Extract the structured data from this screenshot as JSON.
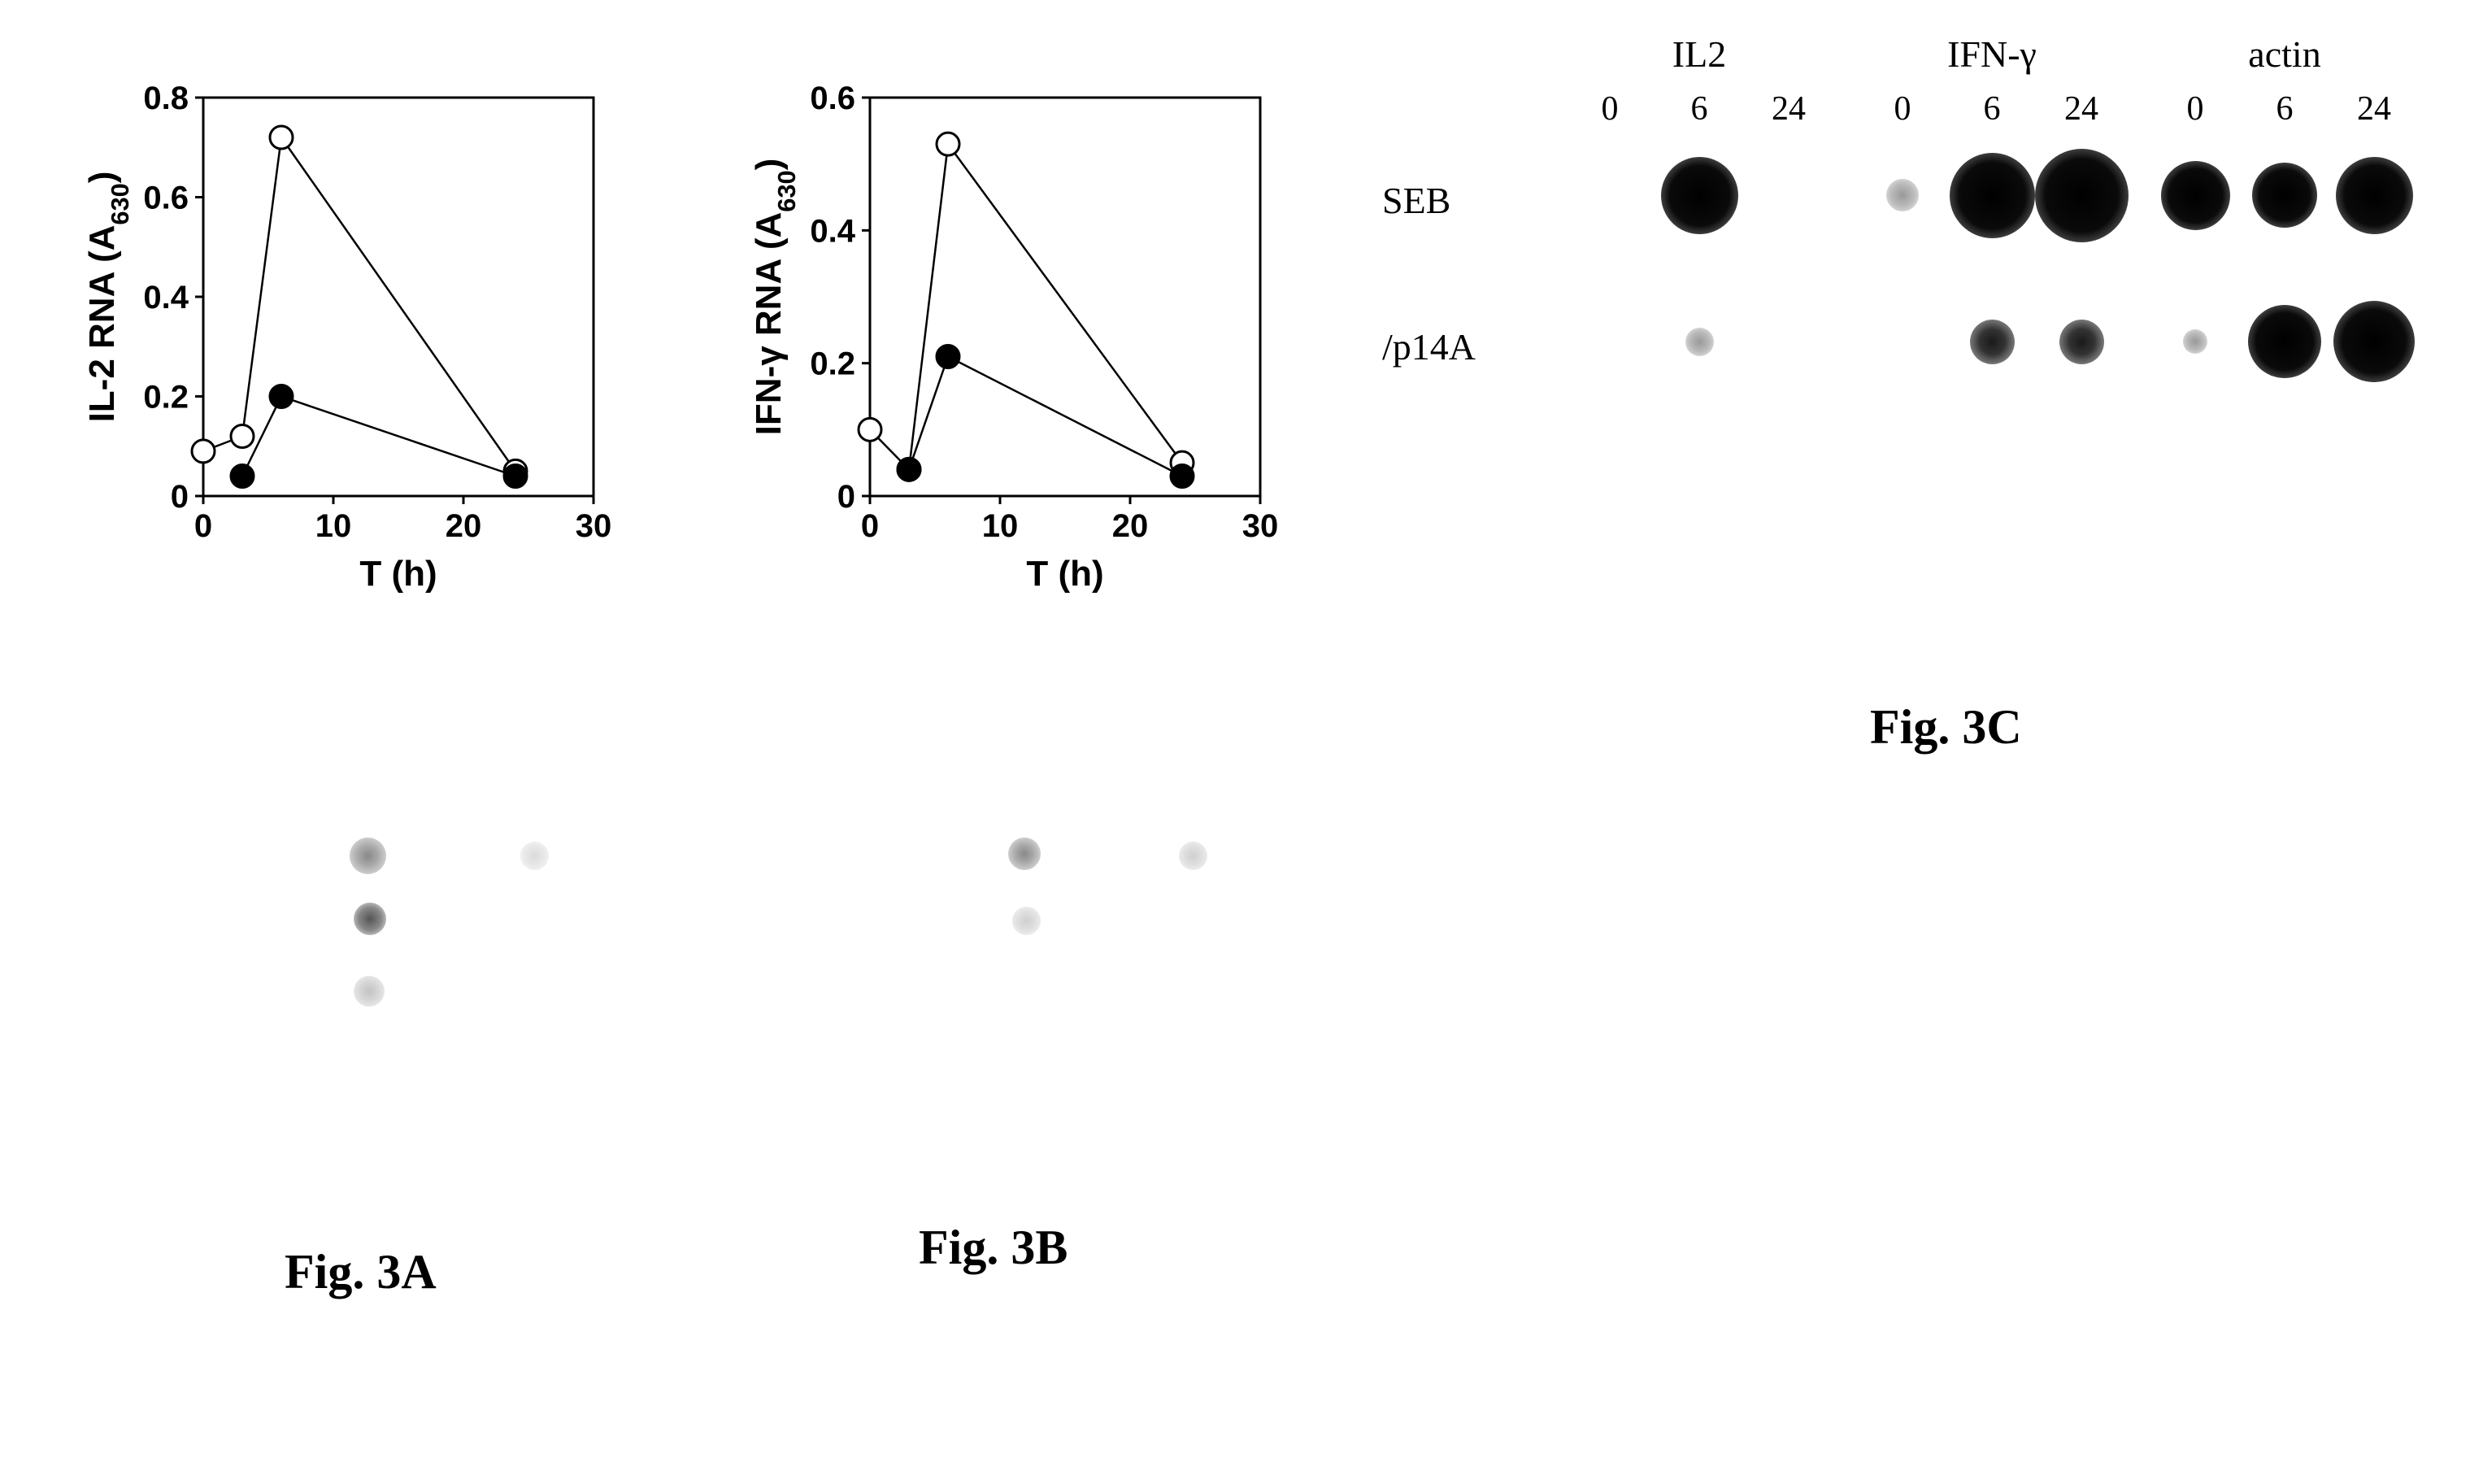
{
  "figA": {
    "caption": "Fig. 3A",
    "caption_fontsize": 60,
    "type": "line",
    "xlabel": "T (h)",
    "ylabel": "IL-2 RNA (A₆₃₀)",
    "label_fontsize": 44,
    "xlim": [
      0,
      30
    ],
    "ylim": [
      0,
      0.8
    ],
    "xticks": [
      0,
      10,
      20,
      30
    ],
    "yticks": [
      0,
      0.2,
      0.4,
      0.6,
      0.8
    ],
    "tick_fontsize": 40,
    "series": [
      {
        "marker": "open-circle",
        "color": "#000000",
        "fill": "#ffffff",
        "line_width": 2.5,
        "marker_size": 14,
        "x": [
          0,
          3,
          6,
          24
        ],
        "y": [
          0.09,
          0.12,
          0.72,
          0.05
        ]
      },
      {
        "marker": "filled-circle",
        "color": "#000000",
        "fill": "#000000",
        "line_width": 2.5,
        "marker_size": 14,
        "x": [
          3,
          6,
          24
        ],
        "y": [
          0.04,
          0.2,
          0.04
        ]
      }
    ],
    "border_color": "#000000",
    "border_width": 3,
    "background_color": "#ffffff"
  },
  "figB": {
    "caption": "Fig. 3B",
    "caption_fontsize": 60,
    "type": "line",
    "xlabel": "T (h)",
    "ylabel": "IFN-γ RNA (A₆₃₀)",
    "label_fontsize": 44,
    "xlim": [
      0,
      30
    ],
    "ylim": [
      0,
      0.6
    ],
    "xticks": [
      0,
      10,
      20,
      30
    ],
    "yticks": [
      0,
      0.2,
      0.4,
      0.6
    ],
    "tick_fontsize": 40,
    "series": [
      {
        "marker": "open-circle",
        "color": "#000000",
        "fill": "#ffffff",
        "line_width": 2.5,
        "marker_size": 14,
        "x": [
          0,
          3,
          6,
          24
        ],
        "y": [
          0.1,
          0.04,
          0.53,
          0.05
        ]
      },
      {
        "marker": "filled-circle",
        "color": "#000000",
        "fill": "#000000",
        "line_width": 2.5,
        "marker_size": 14,
        "x": [
          3,
          6,
          24
        ],
        "y": [
          0.04,
          0.21,
          0.03
        ]
      }
    ],
    "border_color": "#000000",
    "border_width": 3,
    "background_color": "#ffffff"
  },
  "figC": {
    "caption": "Fig. 3C",
    "caption_fontsize": 60,
    "type": "blot",
    "column_groups": [
      "IL2",
      "IFN-γ",
      "actin"
    ],
    "column_labels": [
      "0",
      "6",
      "24",
      "0",
      "6",
      "24",
      "0",
      "6",
      "24"
    ],
    "row_labels": [
      "SEB",
      "/p14A"
    ],
    "label_fontsize": 46,
    "spots": [
      {
        "row": 0,
        "col": 0,
        "intensity": 0.0
      },
      {
        "row": 0,
        "col": 1,
        "intensity": 1.0,
        "size": 95
      },
      {
        "row": 0,
        "col": 2,
        "intensity": 0.0
      },
      {
        "row": 0,
        "col": 3,
        "intensity": 0.1,
        "size": 40
      },
      {
        "row": 0,
        "col": 4,
        "intensity": 1.0,
        "size": 105
      },
      {
        "row": 0,
        "col": 5,
        "intensity": 1.0,
        "size": 115
      },
      {
        "row": 0,
        "col": 6,
        "intensity": 0.9,
        "size": 85
      },
      {
        "row": 0,
        "col": 7,
        "intensity": 0.85,
        "size": 80
      },
      {
        "row": 0,
        "col": 8,
        "intensity": 0.95,
        "size": 95
      },
      {
        "row": 1,
        "col": 0,
        "intensity": 0.0
      },
      {
        "row": 1,
        "col": 1,
        "intensity": 0.1,
        "size": 35
      },
      {
        "row": 1,
        "col": 2,
        "intensity": 0.0
      },
      {
        "row": 1,
        "col": 3,
        "intensity": 0.0
      },
      {
        "row": 1,
        "col": 4,
        "intensity": 0.5,
        "size": 55
      },
      {
        "row": 1,
        "col": 5,
        "intensity": 0.5,
        "size": 55
      },
      {
        "row": 1,
        "col": 6,
        "intensity": 0.05,
        "size": 30
      },
      {
        "row": 1,
        "col": 7,
        "intensity": 0.9,
        "size": 90
      },
      {
        "row": 1,
        "col": 8,
        "intensity": 0.95,
        "size": 100
      }
    ]
  }
}
